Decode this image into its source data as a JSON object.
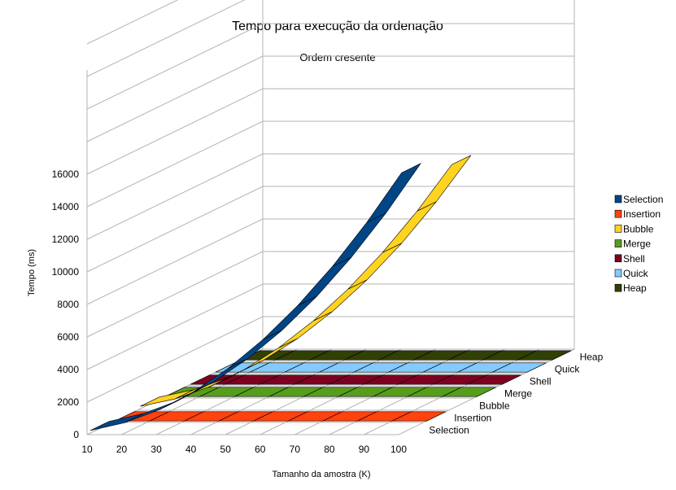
{
  "chart_data": {
    "type": "area",
    "title": "Tempo para execução da ordenação",
    "subtitle": "Ordem cresente",
    "xlabel": "Tamanho da amostra (K)",
    "ylabel": "Tempo (ms)",
    "ylim": [
      0,
      16000
    ],
    "ytick_labels": [
      "0",
      "2000",
      "4000",
      "6000",
      "8000",
      "10000",
      "12000",
      "14000",
      "16000"
    ],
    "x": [
      10,
      20,
      30,
      40,
      50,
      60,
      70,
      80,
      90,
      100
    ],
    "x_tick_labels": [
      "10",
      "20",
      "30",
      "40",
      "50",
      "60",
      "70",
      "80",
      "90",
      "100"
    ],
    "depth_labels": [
      "Selection",
      "Insertion",
      "Bubble",
      "Merge",
      "Shell",
      "Quick",
      "Heap"
    ],
    "legend_position": "right",
    "grid": true,
    "series": [
      {
        "name": "Selection",
        "color": "#004586",
        "values": [
          160,
          640,
          1440,
          2560,
          4000,
          5760,
          7840,
          10240,
          12960,
          16000
        ]
      },
      {
        "name": "Insertion",
        "color": "#ff420e",
        "values": [
          0,
          0,
          0,
          0,
          0,
          0,
          0,
          0,
          0,
          0
        ]
      },
      {
        "name": "Bubble",
        "color": "#ffd320",
        "values": [
          150,
          600,
          1350,
          2400,
          3750,
          5400,
          7350,
          9600,
          12150,
          15000
        ]
      },
      {
        "name": "Merge",
        "color": "#579d1c",
        "values": [
          5,
          10,
          15,
          20,
          25,
          30,
          35,
          40,
          45,
          50
        ]
      },
      {
        "name": "Shell",
        "color": "#7e0021",
        "values": [
          5,
          10,
          15,
          20,
          25,
          30,
          35,
          40,
          45,
          50
        ]
      },
      {
        "name": "Quick",
        "color": "#83caff",
        "values": [
          5,
          10,
          15,
          20,
          25,
          30,
          35,
          40,
          45,
          50
        ]
      },
      {
        "name": "Heap",
        "color": "#314004",
        "values": [
          5,
          10,
          15,
          20,
          25,
          30,
          35,
          40,
          45,
          50
        ]
      }
    ]
  }
}
